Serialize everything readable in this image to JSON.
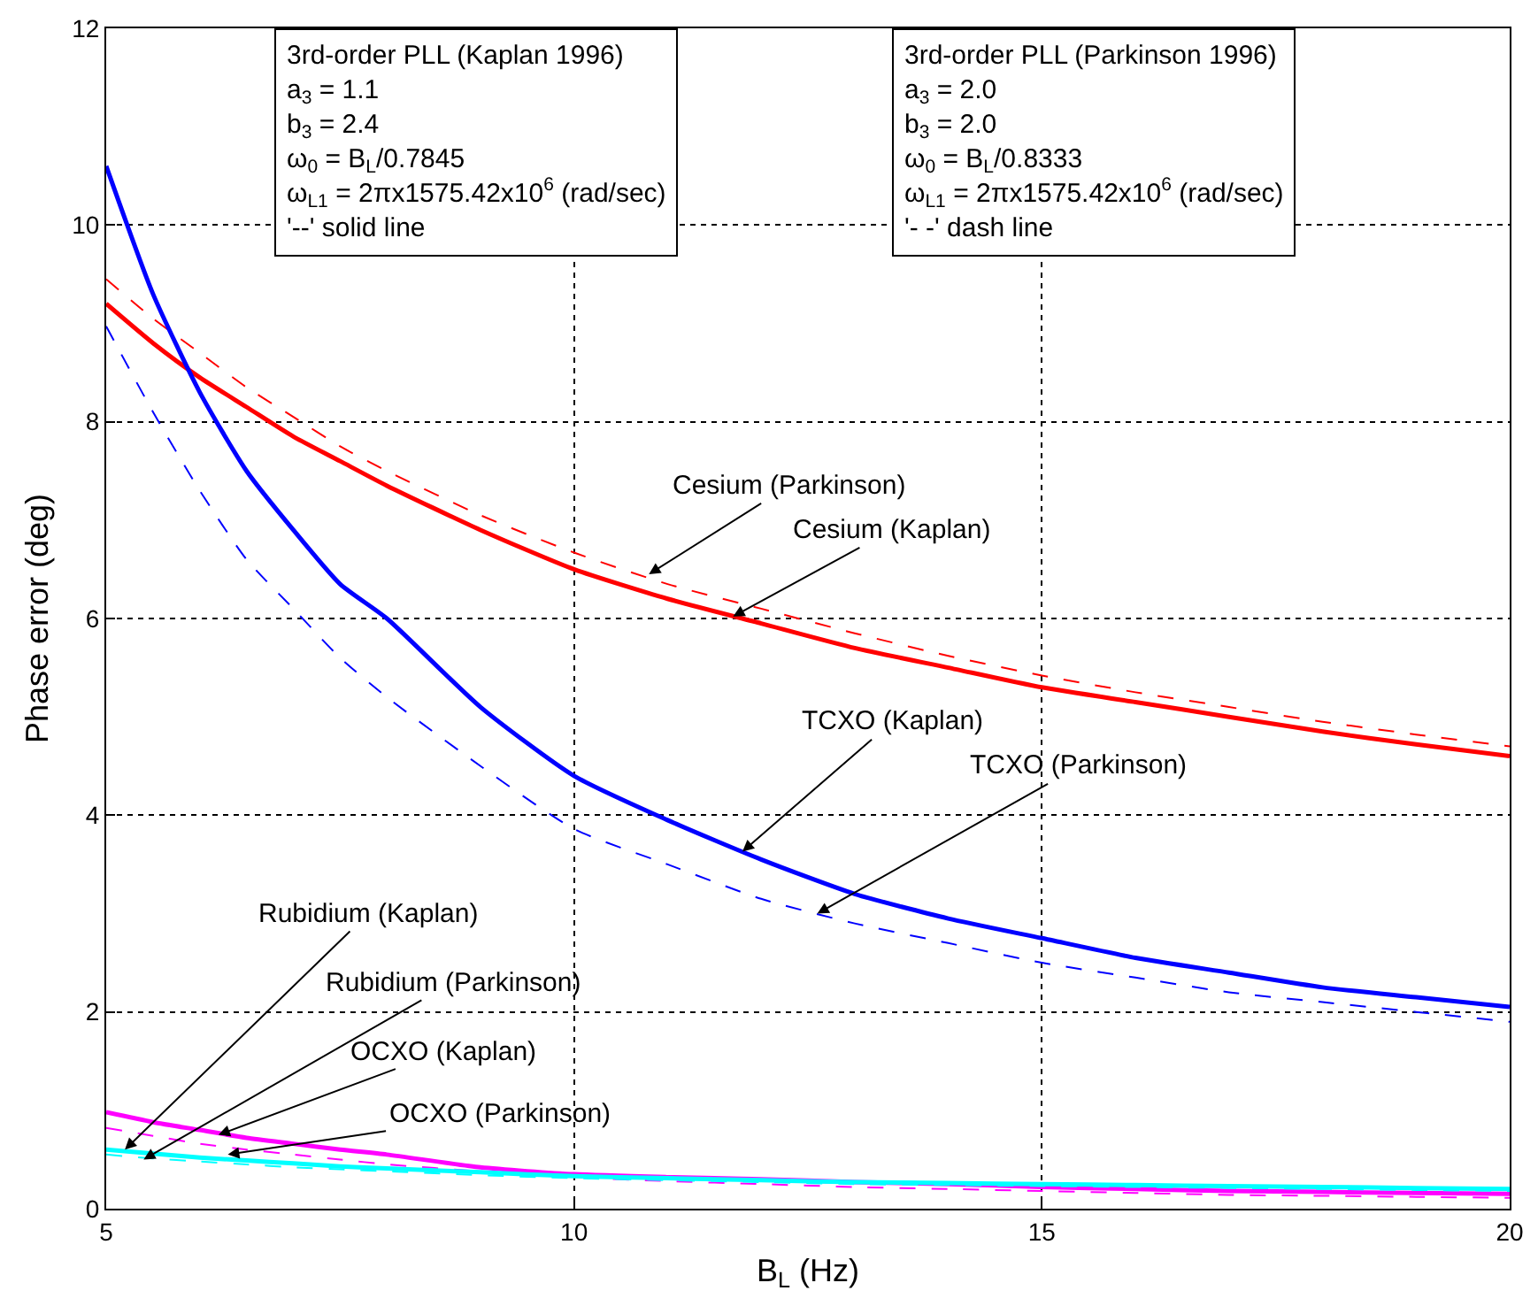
{
  "chart_data": {
    "type": "line",
    "xlabel": "B$_{L}$ (Hz)",
    "ylabel": "Phase error (deg)",
    "x": [
      5,
      5.5,
      6,
      6.5,
      7,
      7.5,
      8,
      9,
      10,
      11,
      12,
      13,
      14,
      15,
      16,
      17,
      18,
      19,
      20
    ],
    "xlim": [
      5,
      20
    ],
    "xticks": [
      5,
      10,
      15,
      20
    ],
    "ylim": [
      0,
      12
    ],
    "yticks": [
      0,
      2,
      4,
      6,
      8,
      10,
      12
    ],
    "grid": true,
    "series": [
      {
        "color": "#ff0000",
        "line_style": "solid",
        "values": [
          9.2,
          8.8,
          8.45,
          8.15,
          7.85,
          7.6,
          7.35,
          6.9,
          6.5,
          6.2,
          5.95,
          5.7,
          5.5,
          5.3,
          5.15,
          5.0,
          4.85,
          4.72,
          4.6
        ]
      },
      {
        "color": "#ff0000",
        "line_style": "dashed",
        "values": [
          9.45,
          9.05,
          8.7,
          8.35,
          8.05,
          7.75,
          7.5,
          7.05,
          6.67,
          6.35,
          6.1,
          5.85,
          5.62,
          5.42,
          5.25,
          5.1,
          4.95,
          4.82,
          4.7
        ]
      },
      {
        "color": "#0000ff",
        "line_style": "solid",
        "values": [
          10.6,
          9.3,
          8.3,
          7.5,
          6.9,
          6.35,
          6.0,
          5.1,
          4.4,
          3.95,
          3.55,
          3.2,
          2.95,
          2.75,
          2.55,
          2.4,
          2.25,
          2.15,
          2.05
        ]
      },
      {
        "color": "#0000ff",
        "line_style": "dashed",
        "values": [
          8.97,
          8.1,
          7.3,
          6.6,
          6.1,
          5.6,
          5.2,
          4.5,
          3.86,
          3.5,
          3.15,
          2.9,
          2.7,
          2.5,
          2.35,
          2.2,
          2.1,
          2.0,
          1.9
        ]
      },
      {
        "color": "#ff00ff",
        "line_style": "solid",
        "values": [
          0.98,
          0.88,
          0.8,
          0.72,
          0.66,
          0.6,
          0.55,
          0.42,
          0.35,
          0.32,
          0.3,
          0.27,
          0.25,
          0.22,
          0.2,
          0.18,
          0.17,
          0.16,
          0.15
        ]
      },
      {
        "color": "#ff00ff",
        "line_style": "dashed",
        "values": [
          0.82,
          0.74,
          0.66,
          0.6,
          0.55,
          0.5,
          0.45,
          0.38,
          0.32,
          0.28,
          0.25,
          0.22,
          0.2,
          0.18,
          0.16,
          0.14,
          0.13,
          0.12,
          0.11
        ]
      },
      {
        "color": "#00ffff",
        "line_style": "solid",
        "values": [
          0.6,
          0.56,
          0.52,
          0.49,
          0.46,
          0.43,
          0.41,
          0.37,
          0.33,
          0.31,
          0.29,
          0.27,
          0.26,
          0.25,
          0.24,
          0.23,
          0.22,
          0.21,
          0.2
        ]
      },
      {
        "color": "#00ffff",
        "line_style": "dashed",
        "values": [
          0.55,
          0.51,
          0.48,
          0.45,
          0.42,
          0.4,
          0.38,
          0.34,
          0.31,
          0.29,
          0.27,
          0.25,
          0.24,
          0.23,
          0.22,
          0.21,
          0.2,
          0.19,
          0.18
        ]
      }
    ],
    "annotations": [
      "3rd-order PLL (Kaplan 1996)\na$_{3}$ = 1.1\nb$_{3}$ = 2.4\nω$_{0}$ = B$_{L}$/0.7845\nω$_{L1}$ = 2πx1575.42x10$^{6}$ (rad/sec)\n'--' solid line",
      "3rd-order PLL (Parkinson 1996)\na$_{3}$ = 2.0\nb$_{3}$ = 2.0\nω$_{0}$ = B$_{L}$/0.8333\nω$_{L1}$ = 2πx1575.42x10$^{6}$ (rad/sec)\n'- -' dash line",
      {
        "text": "Cesium (Parkinson)",
        "x": 10.8,
        "y": 6.45
      },
      {
        "text": "Cesium (Kaplan)",
        "x": 11.7,
        "y": 6.02
      },
      {
        "text": "TCXO (Kaplan)",
        "x": 11.8,
        "y": 3.63
      },
      {
        "text": "TCXO (Parkinson)",
        "x": 12.6,
        "y": 3.0
      },
      {
        "text": "Rubidium (Kaplan)",
        "x": 5.2,
        "y": 0.6
      },
      {
        "text": "Rubidium (Parkinson)",
        "x": 5.4,
        "y": 0.5
      },
      {
        "text": "OCXO (Kaplan)",
        "x": 6.2,
        "y": 0.75
      },
      {
        "text": "OCXO (Parkinson)",
        "x": 6.3,
        "y": 0.55
      }
    ]
  }
}
